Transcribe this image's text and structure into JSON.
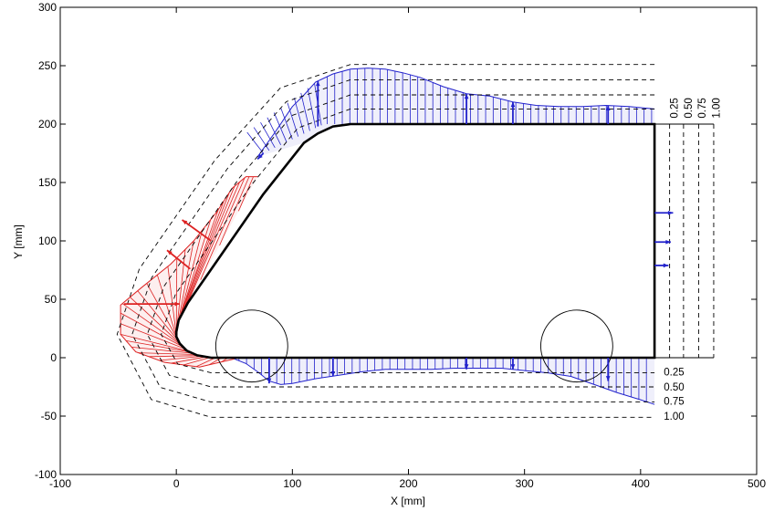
{
  "chart_data": {
    "type": "line",
    "title": "",
    "xlabel": "X [mm]",
    "ylabel": "Y [mm]",
    "xlim": [
      -100,
      500
    ],
    "ylim": [
      -100,
      300
    ],
    "xticks": [
      -100,
      0,
      100,
      200,
      300,
      400,
      500
    ],
    "yticks": [
      -100,
      -50,
      0,
      50,
      100,
      150,
      200,
      250,
      300
    ],
    "grid": false,
    "body_outline": [
      [
        50,
        0
      ],
      [
        412,
        0
      ],
      [
        412,
        200
      ],
      [
        150,
        200
      ],
      [
        135,
        198
      ],
      [
        122,
        192
      ],
      [
        110,
        184
      ],
      [
        75,
        140
      ],
      [
        10,
        47
      ],
      [
        2,
        32
      ],
      [
        0,
        22
      ],
      [
        0,
        18
      ],
      [
        3,
        12
      ],
      [
        9,
        6
      ],
      [
        18,
        2
      ],
      [
        30,
        0
      ],
      [
        50,
        0
      ]
    ],
    "wheels": [
      {
        "cx": 65,
        "cy": 10,
        "r": 31
      },
      {
        "cx": 345,
        "cy": 10,
        "r": 31
      }
    ],
    "offset_lines": {
      "labels": [
        "0.25",
        "0.50",
        "0.75",
        "1.00"
      ],
      "offsets_mm": [
        13,
        25,
        38,
        51
      ]
    },
    "pressure_top": {
      "color": "#2222cc",
      "points": [
        [
          70,
          172
        ],
        [
          85,
          193
        ],
        [
          100,
          215
        ],
        [
          110,
          225
        ],
        [
          120,
          236
        ],
        [
          135,
          243
        ],
        [
          150,
          247
        ],
        [
          165,
          248
        ],
        [
          180,
          247
        ],
        [
          195,
          244
        ],
        [
          210,
          240
        ],
        [
          230,
          232
        ],
        [
          250,
          226
        ],
        [
          270,
          224
        ],
        [
          290,
          219
        ],
        [
          310,
          216
        ],
        [
          330,
          215
        ],
        [
          350,
          215
        ],
        [
          370,
          216
        ],
        [
          390,
          215
        ],
        [
          412,
          213
        ]
      ]
    },
    "pressure_bottom": {
      "color": "#2222cc",
      "points": [
        [
          50,
          -1
        ],
        [
          60,
          -5
        ],
        [
          70,
          -12
        ],
        [
          80,
          -20
        ],
        [
          90,
          -23
        ],
        [
          100,
          -22
        ],
        [
          120,
          -18
        ],
        [
          140,
          -15
        ],
        [
          160,
          -12
        ],
        [
          180,
          -10
        ],
        [
          200,
          -10
        ],
        [
          220,
          -10
        ],
        [
          240,
          -9
        ],
        [
          260,
          -9
        ],
        [
          280,
          -9
        ],
        [
          300,
          -11
        ],
        [
          320,
          -13
        ],
        [
          340,
          -16
        ],
        [
          360,
          -23
        ],
        [
          380,
          -30
        ],
        [
          400,
          -36
        ],
        [
          412,
          -40
        ]
      ]
    },
    "pressure_front": {
      "color": "#dd2222",
      "points": [
        [
          70,
          155
        ],
        [
          60,
          155
        ],
        [
          48,
          145
        ],
        [
          35,
          125
        ],
        [
          15,
          100
        ],
        [
          -5,
          80
        ],
        [
          -30,
          60
        ],
        [
          -48,
          45
        ],
        [
          -48,
          20
        ],
        [
          -35,
          5
        ],
        [
          -10,
          -4
        ],
        [
          20,
          -8
        ],
        [
          50,
          -1
        ]
      ]
    },
    "arrows_blue": [
      [
        75,
        175,
        70,
        170
      ],
      [
        122,
        198,
        122,
        237
      ],
      [
        250,
        200,
        250,
        226
      ],
      [
        290,
        200,
        290,
        219
      ],
      [
        372,
        200,
        372,
        216
      ],
      [
        80,
        0,
        80,
        -22
      ],
      [
        135,
        0,
        135,
        -16
      ],
      [
        250,
        0,
        250,
        -10
      ],
      [
        290,
        0,
        290,
        -10
      ],
      [
        372,
        0,
        372,
        -20
      ],
      [
        412,
        124,
        428,
        124
      ],
      [
        412,
        99,
        426,
        99
      ],
      [
        412,
        79,
        424,
        79
      ]
    ],
    "arrows_red": [
      [
        -45,
        46,
        3,
        46
      ],
      [
        12,
        76,
        -8,
        92
      ],
      [
        30,
        100,
        5,
        118
      ]
    ]
  }
}
